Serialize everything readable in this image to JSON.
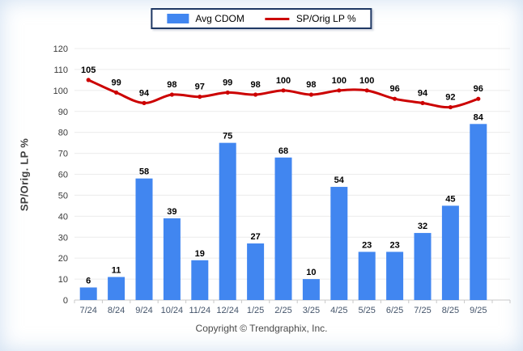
{
  "legend": {
    "items": [
      {
        "label": "Avg CDOM",
        "type": "bar",
        "color": "#4186f0"
      },
      {
        "label": "SP/Orig LP %",
        "type": "line",
        "color": "#cc0000"
      }
    ]
  },
  "chart_data": {
    "type": "bar+line",
    "title": "",
    "xlabel": "",
    "ylabel": "SP/Orig. LP %",
    "ylim": [
      0,
      120
    ],
    "yticks": [
      0,
      10,
      20,
      30,
      40,
      50,
      60,
      70,
      80,
      90,
      100,
      110,
      120
    ],
    "grid": true,
    "legend_position": "top-center",
    "categories": [
      "7/24",
      "8/24",
      "9/24",
      "10/24",
      "11/24",
      "12/24",
      "1/25",
      "2/25",
      "3/25",
      "4/25",
      "5/25",
      "6/25",
      "7/25",
      "8/25",
      "9/25"
    ],
    "series": [
      {
        "name": "Avg CDOM",
        "type": "bar",
        "color": "#4186f0",
        "values": [
          6,
          11,
          58,
          39,
          19,
          75,
          27,
          68,
          10,
          54,
          23,
          23,
          32,
          45,
          84
        ]
      },
      {
        "name": "SP/Orig LP %",
        "type": "line",
        "color": "#cc0000",
        "values": [
          105,
          99,
          94,
          98,
          97,
          99,
          98,
          100,
          98,
          100,
          100,
          96,
          94,
          92,
          96
        ]
      }
    ],
    "colors": {
      "grid": "#ececec",
      "axis": "#c9c9c9",
      "tick_label": "#3a3a3a",
      "x_label": "#44546a",
      "value_label": "#000000"
    }
  },
  "footer": {
    "copyright": "Copyright © Trendgraphix, Inc."
  }
}
